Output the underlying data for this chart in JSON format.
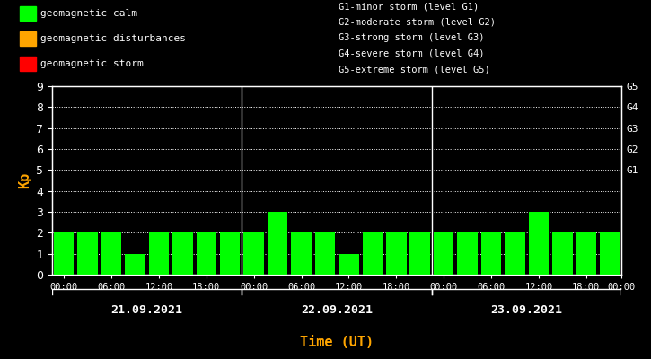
{
  "background_color": "#000000",
  "bar_color_calm": "#00ff00",
  "bar_color_disturbance": "#ffa500",
  "bar_color_storm": "#ff0000",
  "ylabel": "Kp",
  "xlabel": "Time (UT)",
  "ylabel_color": "#ffa500",
  "xlabel_color": "#ffa500",
  "ylim": [
    0,
    9
  ],
  "yticks": [
    0,
    1,
    2,
    3,
    4,
    5,
    6,
    7,
    8,
    9
  ],
  "grid_color": "#ffffff",
  "axis_color": "#ffffff",
  "tick_color": "#ffffff",
  "days": [
    "21.09.2021",
    "22.09.2021",
    "23.09.2021"
  ],
  "kp_values": [
    2,
    2,
    2,
    1,
    2,
    2,
    2,
    2,
    2,
    3,
    2,
    2,
    1,
    2,
    2,
    2,
    2,
    2,
    2,
    2,
    3,
    2,
    2,
    2
  ],
  "right_labels": [
    "G5",
    "G4",
    "G3",
    "G2",
    "G1"
  ],
  "right_label_yticks": [
    9,
    8,
    7,
    6,
    5
  ],
  "legend_items": [
    {
      "label": "geomagnetic calm",
      "color": "#00ff00"
    },
    {
      "label": "geomagnetic disturbances",
      "color": "#ffa500"
    },
    {
      "label": "geomagnetic storm",
      "color": "#ff0000"
    }
  ],
  "storm_labels_text": [
    "G1-minor storm (level G1)",
    "G2-moderate storm (level G2)",
    "G3-strong storm (level G3)",
    "G4-severe storm (level G4)",
    "G5-extreme storm (level G5)"
  ],
  "bar_width": 0.85,
  "figsize": [
    7.25,
    4.0
  ],
  "dpi": 100
}
